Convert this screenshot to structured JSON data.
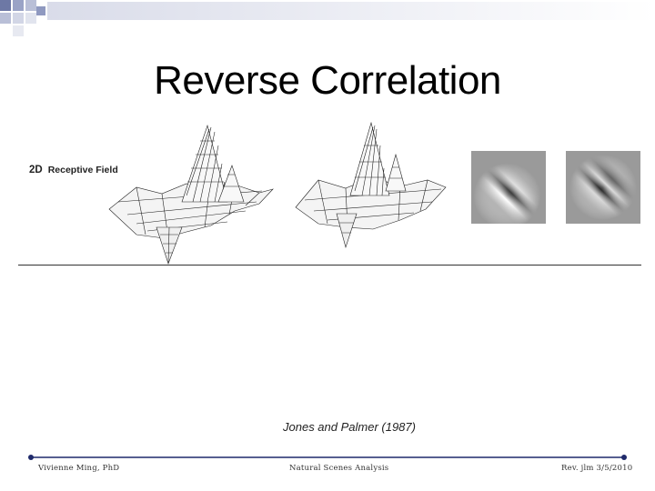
{
  "slide": {
    "title": "Reverse Correlation",
    "figure": {
      "label_prefix": "2D",
      "label_text": "Receptive Field",
      "graphics": [
        "3d-receptive-field-mesh-plot",
        "3d-receptive-field-mesh-plot",
        "gabor-filter-grayscale-image",
        "gabor-filter-grayscale-image"
      ]
    },
    "citation": "Jones and Palmer (1987)"
  },
  "footer": {
    "left": "Vivienne Ming, PhD",
    "center": "Natural Scenes Analysis",
    "right": "Rev. jlm 3/5/2010"
  },
  "theme": {
    "accent": "#1f2a6b",
    "deco_squares": "#5a6a9a"
  }
}
